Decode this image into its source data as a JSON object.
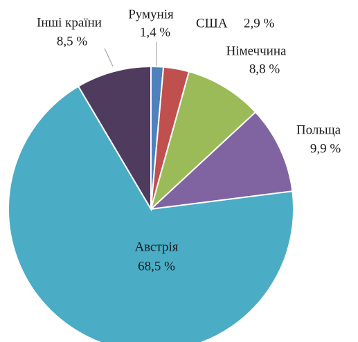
{
  "chart_data": {
    "type": "pie",
    "categories": [
      "Румунія",
      "США",
      "Німеччина",
      "Польща",
      "Австрія",
      "Інші країни"
    ],
    "values": [
      1.4,
      2.9,
      8.8,
      9.9,
      68.5,
      8.5
    ],
    "value_labels": [
      "1,4 %",
      "2,9 %",
      "8,8 %",
      "9,9 %",
      "68,5 %",
      "8,5 %"
    ],
    "colors": [
      "#4f81bd",
      "#c0504d",
      "#9bbb59",
      "#8064a2",
      "#4bacc6",
      "#4f3b5e"
    ]
  }
}
